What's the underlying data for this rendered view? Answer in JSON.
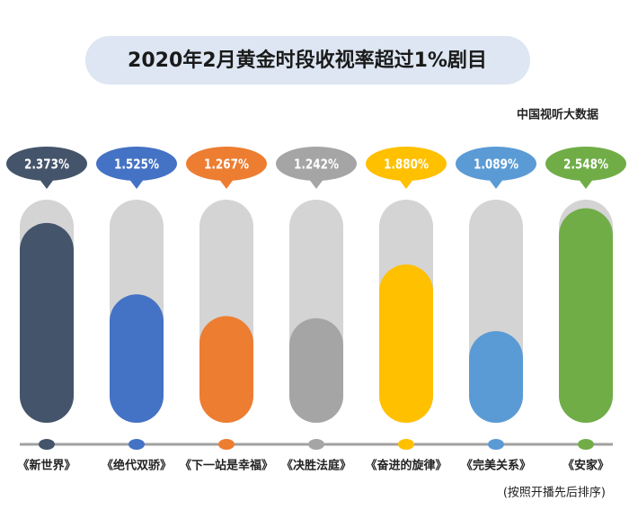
{
  "chart_data": {
    "type": "bar",
    "title": "2020年2月黄金时段收视率超过1%剧目",
    "source": "中国视听大数据",
    "note": "(按照开播先后排序)",
    "categories": [
      "《新世界》",
      "《绝代双骄》",
      "《下一站是幸福》",
      "《决胜法庭》",
      "《奋进的旋律》",
      "《完美关系》",
      "《安家》"
    ],
    "values": [
      2.373,
      1.525,
      1.267,
      1.242,
      1.88,
      1.089,
      2.548
    ],
    "value_labels": [
      "2.373%",
      "1.525%",
      "1.267%",
      "1.242%",
      "1.880%",
      "1.089%",
      "2.548%"
    ],
    "colors": [
      "#44546a",
      "#4472c4",
      "#ed7d31",
      "#a5a5a5",
      "#ffc000",
      "#5b9bd5",
      "#70ad47"
    ],
    "ylim": [
      0,
      2.65
    ]
  }
}
